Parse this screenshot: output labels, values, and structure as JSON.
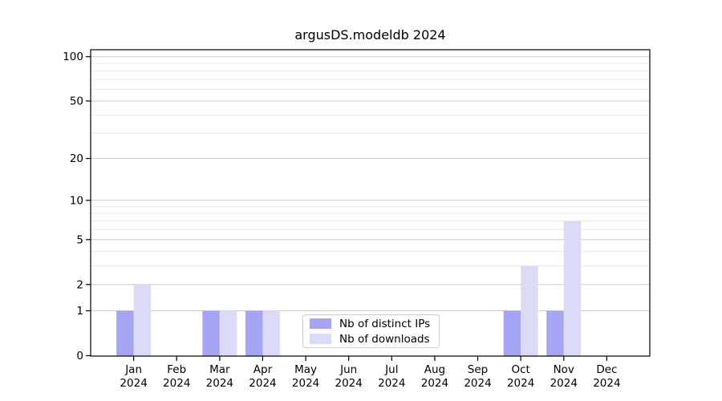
{
  "figure": {
    "title": "argusDS.modeldb 2024"
  },
  "legend": {
    "items": [
      {
        "label": "Nb of distinct IPs",
        "color": "#a5a5f3"
      },
      {
        "label": "Nb of downloads",
        "color": "#dbdbf8"
      }
    ]
  },
  "chart_data": {
    "type": "bar",
    "title": "argusDS.modeldb 2024",
    "categories": [
      "Jan",
      "Feb",
      "Mar",
      "Apr",
      "May",
      "Jun",
      "Jul",
      "Aug",
      "Sep",
      "Oct",
      "Nov",
      "Dec"
    ],
    "category_year": "2024",
    "series": [
      {
        "name": "Nb of distinct IPs",
        "color": "#a5a5f3",
        "values": [
          1,
          0,
          1,
          1,
          0,
          0,
          0,
          0,
          0,
          1,
          1,
          0
        ]
      },
      {
        "name": "Nb of downloads",
        "color": "#dbdbf8",
        "values": [
          2,
          0,
          1,
          1,
          0,
          0,
          0,
          0,
          0,
          3,
          7,
          0
        ]
      }
    ],
    "yscale": "log1p",
    "ylim": [
      0,
      111
    ],
    "yticks": [
      0,
      1,
      2,
      5,
      10,
      20,
      50,
      100
    ],
    "minor_grid_values": [
      3,
      4,
      6,
      7,
      8,
      9,
      30,
      40,
      60,
      70,
      80,
      90
    ],
    "grid": true,
    "legend_position": "lower center inside",
    "axis_color": "#000000",
    "major_grid_color": "#cccccc",
    "minor_grid_color": "#ebebeb"
  }
}
